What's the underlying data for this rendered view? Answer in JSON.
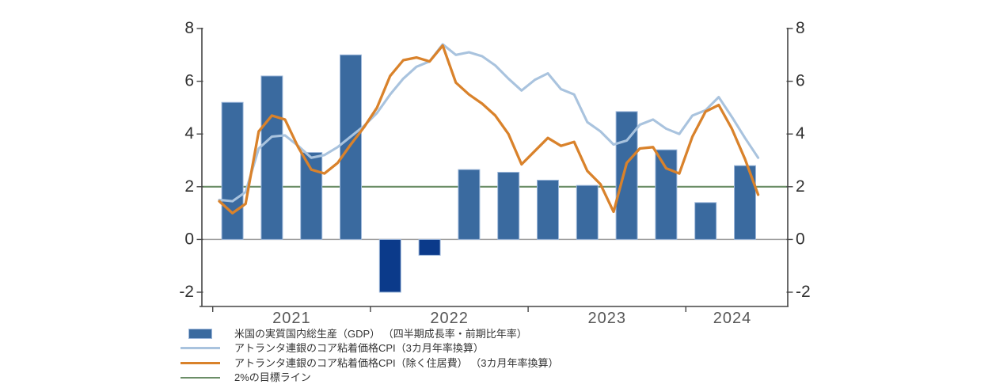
{
  "chart_data": {
    "type": "combo-bar-line",
    "title": "",
    "unit": "%",
    "y_axis": {
      "min": -2,
      "max": 8,
      "ticks": [
        8,
        6,
        4,
        2,
        0,
        -2
      ],
      "sides": "both"
    },
    "x_axis": {
      "years": [
        "2021",
        "2022",
        "2023",
        "2024"
      ]
    },
    "months": [
      "2021-01",
      "2021-02",
      "2021-03",
      "2021-04",
      "2021-05",
      "2021-06",
      "2021-07",
      "2021-08",
      "2021-09",
      "2021-10",
      "2021-11",
      "2021-12",
      "2022-01",
      "2022-02",
      "2022-03",
      "2022-04",
      "2022-05",
      "2022-06",
      "2022-07",
      "2022-08",
      "2022-09",
      "2022-10",
      "2022-11",
      "2022-12",
      "2023-01",
      "2023-02",
      "2023-03",
      "2023-04",
      "2023-05",
      "2023-06",
      "2023-07",
      "2023-08",
      "2023-09",
      "2023-10",
      "2023-11",
      "2023-12",
      "2024-01",
      "2024-02",
      "2024-03",
      "2024-04",
      "2024-05",
      "2024-06"
    ],
    "bars": {
      "label": "米国の実質国内総生産（GDP） （四半期成長率・前期比年率）",
      "quarters": [
        "2021Q1",
        "2021Q2",
        "2021Q3",
        "2021Q4",
        "2022Q1",
        "2022Q2",
        "2022Q3",
        "2022Q4",
        "2023Q1",
        "2023Q2",
        "2023Q3",
        "2023Q4",
        "2024Q1",
        "2024Q2"
      ],
      "values": [
        5.2,
        6.2,
        3.3,
        7.0,
        -2.0,
        -0.6,
        2.65,
        2.55,
        2.25,
        2.05,
        4.85,
        3.4,
        1.4,
        2.8
      ],
      "color_positive": "#3A6A9F",
      "color_negative": "#0B3A8A",
      "border_color": "#9FB9DB"
    },
    "lines": [
      {
        "label": "アトランタ連銀のコア粘着価格CPI（3カ月年率換算）",
        "color": "#A9C3DE",
        "width": 3.1,
        "values": [
          1.5,
          1.45,
          1.8,
          3.45,
          3.9,
          3.95,
          3.55,
          3.1,
          3.2,
          3.5,
          3.9,
          4.3,
          4.8,
          5.5,
          6.1,
          6.55,
          6.75,
          7.4,
          7.0,
          7.1,
          6.95,
          6.6,
          6.1,
          5.65,
          6.05,
          6.3,
          5.7,
          5.5,
          4.45,
          4.1,
          3.6,
          3.75,
          4.35,
          4.55,
          4.2,
          4.0,
          4.7,
          4.9,
          5.4,
          4.65,
          3.85,
          3.1
        ]
      },
      {
        "label": "アトランタ連銀のコア粘着価格CPI（除く住居費） （3カ月年率換算）",
        "color": "#D9822B",
        "width": 3.3,
        "values": [
          1.45,
          1.0,
          1.35,
          4.1,
          4.7,
          4.55,
          3.5,
          2.65,
          2.5,
          2.9,
          3.6,
          4.25,
          5.0,
          6.2,
          6.8,
          6.9,
          6.75,
          7.35,
          5.95,
          5.5,
          5.15,
          4.7,
          4.0,
          2.85,
          3.35,
          3.85,
          3.55,
          3.7,
          2.6,
          2.1,
          1.05,
          2.9,
          3.45,
          3.5,
          2.7,
          2.5,
          3.9,
          4.85,
          5.1,
          4.2,
          3.05,
          1.7
        ]
      }
    ],
    "target_line": {
      "label": "2%の目標ライン",
      "value": 2,
      "color": "#6B8E67"
    },
    "colors": {
      "axis": "#454545",
      "zero_line": "#9C9C9C",
      "y_tick_label": "#303030",
      "year_label": "#575757",
      "legend_text": "#333333",
      "background": "#FFFFFF"
    }
  }
}
